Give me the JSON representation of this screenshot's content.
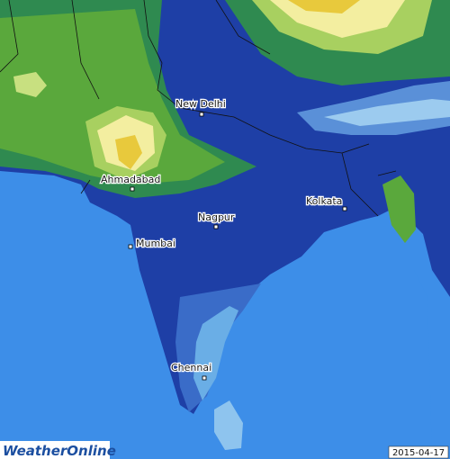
{
  "map": {
    "cities": [
      {
        "label": "New Delhi"
      },
      {
        "label": "Ahmadabad"
      },
      {
        "label": "Nagpur"
      },
      {
        "label": "Kolkata"
      },
      {
        "label": "Mumbai"
      },
      {
        "label": "Chennai"
      }
    ],
    "logo": "WeatherOnline",
    "date": "2015-04-17"
  }
}
